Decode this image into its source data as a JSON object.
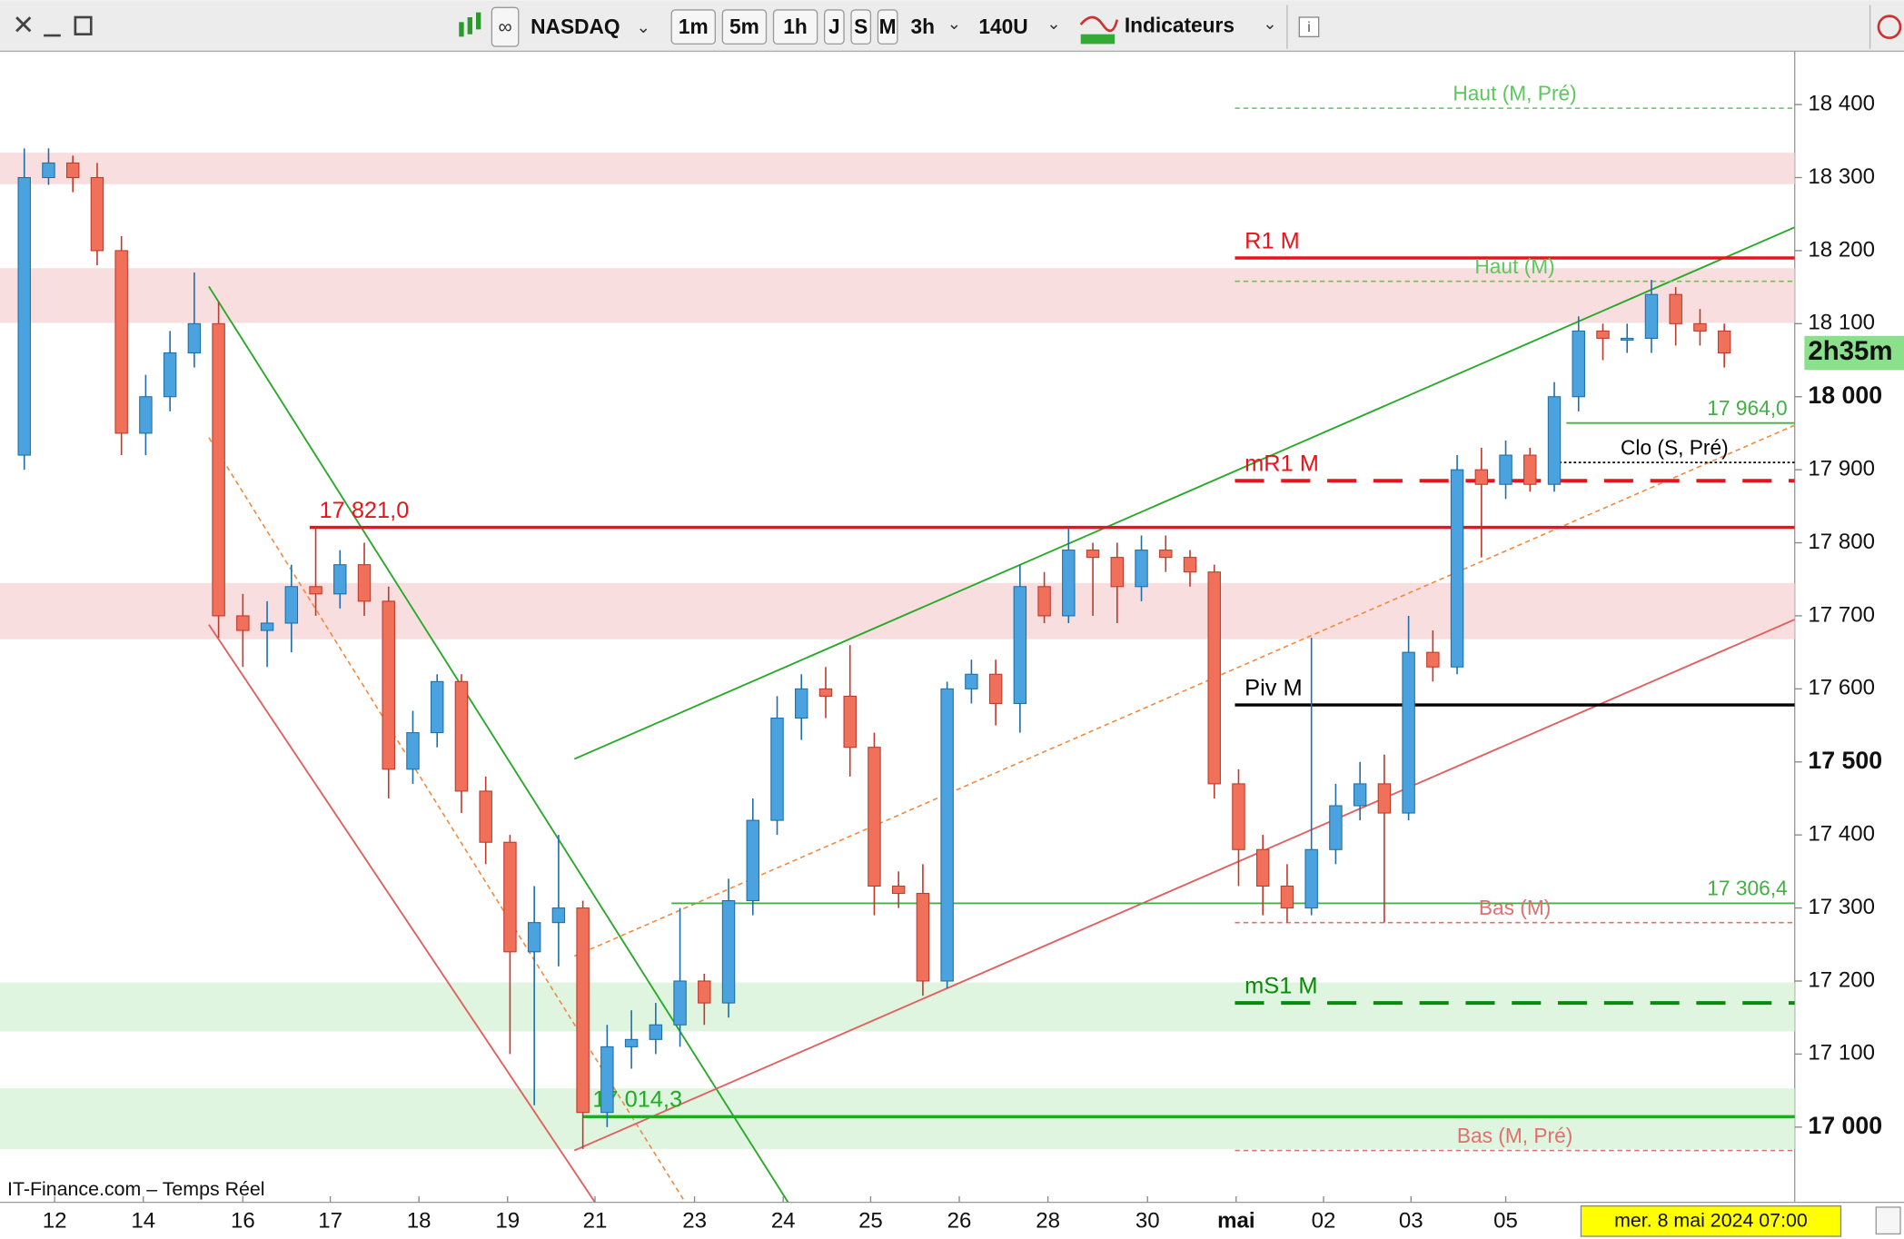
{
  "toolbar": {
    "symbol": "NASDAQ",
    "periods": [
      "1m",
      "5m",
      "1h",
      "J",
      "S",
      "M"
    ],
    "interval": "3h",
    "units": "140U",
    "indicators": "Indicateurs"
  },
  "chart_data": {
    "type": "candlestick",
    "source": "IT-Finance.com – Temps Réel",
    "cursor_date": "mer. 8 mai 2024 07:00",
    "countdown": "2h35m",
    "up_color": "#4aa3df",
    "down_color": "#f0705a",
    "xlim": [
      -1,
      72.9
    ],
    "ylim": [
      16897,
      18473
    ],
    "yticks": [
      {
        "value": 18400,
        "label": "18 400"
      },
      {
        "value": 18300,
        "label": "18 300"
      },
      {
        "value": 18200,
        "label": "18 200"
      },
      {
        "value": 18100,
        "label": "18 100"
      },
      {
        "value": 18000,
        "label": "18 000"
      },
      {
        "value": 17900,
        "label": "17 900"
      },
      {
        "value": 17800,
        "label": "17 800"
      },
      {
        "value": 17700,
        "label": "17 700"
      },
      {
        "value": 17600,
        "label": "17 600"
      },
      {
        "value": 17500,
        "label": "17 500"
      },
      {
        "value": 17400,
        "label": "17 400"
      },
      {
        "value": 17300,
        "label": "17 300"
      },
      {
        "value": 17200,
        "label": "17 200"
      },
      {
        "value": 17100,
        "label": "17 100"
      },
      {
        "value": 17000,
        "label": "17 000"
      }
    ],
    "xticks": [
      {
        "value": 1.25,
        "label": "12"
      },
      {
        "value": 4.9,
        "label": "14"
      },
      {
        "value": 9,
        "label": "16"
      },
      {
        "value": 12.6,
        "label": "17"
      },
      {
        "value": 16.25,
        "label": "18"
      },
      {
        "value": 19.9,
        "label": "19"
      },
      {
        "value": 23.5,
        "label": "21"
      },
      {
        "value": 27.6,
        "label": "23"
      },
      {
        "value": 31.25,
        "label": "24"
      },
      {
        "value": 34.85,
        "label": "25"
      },
      {
        "value": 38.5,
        "label": "26"
      },
      {
        "value": 42.15,
        "label": "28"
      },
      {
        "value": 46.25,
        "label": "30"
      },
      {
        "value": 49.9,
        "label": "mai"
      },
      {
        "value": 53.5,
        "label": "02"
      },
      {
        "value": 57.1,
        "label": "03"
      },
      {
        "value": 61,
        "label": "05"
      }
    ],
    "open": [
      17920,
      18300,
      18320,
      18300,
      18200,
      17950,
      18000,
      18060,
      18100,
      17700,
      17680,
      17690,
      17740,
      17730,
      17770,
      17720,
      17490,
      17540,
      17610,
      17460,
      17390,
      17240,
      17280,
      17300,
      17020,
      17110,
      17120,
      17140,
      17200,
      17170,
      17310,
      17420,
      17560,
      17600,
      17590,
      17520,
      17330,
      17320,
      17200,
      17600,
      17620,
      17580,
      17740,
      17700,
      17790,
      17780,
      17740,
      17790,
      17780,
      17760,
      17470,
      17380,
      17330,
      17300,
      17380,
      17440,
      17470,
      17430,
      17650,
      17630,
      17900,
      17880,
      17920,
      17880,
      18000,
      18090,
      18080,
      18080,
      18140,
      18100,
      18090
    ],
    "high": [
      18340,
      18340,
      18330,
      18320,
      18220,
      18030,
      18090,
      18170,
      18130,
      17730,
      17720,
      17770,
      17820,
      17790,
      17800,
      17740,
      17570,
      17620,
      17620,
      17480,
      17400,
      17330,
      17400,
      17310,
      17140,
      17160,
      17170,
      17300,
      17210,
      17340,
      17450,
      17590,
      17620,
      17630,
      17660,
      17540,
      17350,
      17360,
      17610,
      17640,
      17640,
      17770,
      17760,
      17820,
      17800,
      17800,
      17810,
      17810,
      17790,
      17770,
      17490,
      17400,
      17360,
      17670,
      17470,
      17500,
      17510,
      17700,
      17680,
      17920,
      17930,
      17940,
      17930,
      18020,
      18110,
      18100,
      18100,
      18160,
      18150,
      18120,
      18100
    ],
    "low": [
      17900,
      18290,
      18280,
      18180,
      17920,
      17920,
      17980,
      18040,
      17670,
      17630,
      17630,
      17650,
      17700,
      17710,
      17700,
      17450,
      17470,
      17520,
      17430,
      17360,
      17100,
      17030,
      17220,
      16970,
      17000,
      17080,
      17100,
      17110,
      17140,
      17150,
      17290,
      17400,
      17530,
      17560,
      17480,
      17290,
      17300,
      17180,
      17190,
      17580,
      17550,
      17540,
      17690,
      17690,
      17700,
      17690,
      17720,
      17760,
      17740,
      17450,
      17330,
      17290,
      17280,
      17290,
      17360,
      17420,
      17280,
      17420,
      17610,
      17620,
      17780,
      17860,
      17870,
      17870,
      17980,
      18050,
      18060,
      18060,
      18070,
      18070,
      18040
    ],
    "close": [
      18300,
      18320,
      18300,
      18200,
      17950,
      18000,
      18060,
      18100,
      17700,
      17680,
      17690,
      17740,
      17730,
      17770,
      17720,
      17490,
      17540,
      17610,
      17460,
      17390,
      17240,
      17280,
      17300,
      17020,
      17110,
      17120,
      17140,
      17200,
      17170,
      17310,
      17420,
      17560,
      17600,
      17590,
      17520,
      17330,
      17320,
      17200,
      17600,
      17620,
      17580,
      17740,
      17700,
      17790,
      17780,
      17740,
      17790,
      17780,
      17760,
      17470,
      17380,
      17330,
      17300,
      17380,
      17440,
      17470,
      17430,
      17650,
      17630,
      17900,
      17880,
      17920,
      17880,
      18000,
      18090,
      18080,
      18080,
      18140,
      18100,
      18090,
      18060
    ],
    "zones": [
      {
        "low": 18291,
        "high": 18334,
        "color": "#f8dede"
      },
      {
        "low": 18101,
        "high": 18176,
        "color": "#f8dede"
      },
      {
        "low": 17668,
        "high": 17745,
        "color": "#f8dede"
      },
      {
        "low": 17131,
        "high": 17198,
        "color": "#dff5df"
      },
      {
        "low": 16970,
        "high": 17053,
        "color": "#dff5df"
      }
    ],
    "trendlines": [
      {
        "color": "#2aa82a",
        "style": "solid",
        "points": [
          [
            7.6,
            18151
          ],
          [
            32.25,
            16855
          ]
        ]
      },
      {
        "color": "#e06060",
        "style": "solid",
        "points": [
          [
            7.6,
            17688
          ],
          [
            23.5,
            16897
          ]
        ]
      },
      {
        "color": "#f08a40",
        "style": "dashed",
        "points": [
          [
            7.6,
            17944
          ],
          [
            28,
            16855
          ]
        ]
      },
      {
        "color": "#2aa82a",
        "style": "solid",
        "points": [
          [
            22.65,
            17504
          ],
          [
            72.9,
            18232
          ]
        ]
      },
      {
        "color": "#f08a40",
        "style": "dashed",
        "points": [
          [
            22.65,
            17234
          ],
          [
            72.9,
            17961
          ]
        ]
      },
      {
        "color": "#e06060",
        "style": "solid",
        "points": [
          [
            22.65,
            16968
          ],
          [
            72.9,
            17695
          ]
        ]
      }
    ],
    "levels": [
      {
        "name": "Haut (M, Pré)",
        "value": 18395,
        "color": "#5cc85c",
        "style": "dashed",
        "start": 49.85,
        "align": "center"
      },
      {
        "name": "R1 M",
        "value": 18190,
        "color": "#e8141c",
        "style": "thick",
        "start": 49.85,
        "align": "left"
      },
      {
        "name": "Haut (M)",
        "value": 18158,
        "color": "#5cc85c",
        "style": "dashed",
        "start": 49.85,
        "align": "center"
      },
      {
        "value": 17964,
        "value_label": "17 964,0",
        "color": "#44b044",
        "style": "solid",
        "start": 63.5,
        "align": "right"
      },
      {
        "name": "Clo (S, Pré)",
        "value": 17910,
        "color": "#000000",
        "style": "dotted",
        "start": 63,
        "align": "center"
      },
      {
        "name": "mR1 M",
        "value": 17885,
        "color": "#e8141c",
        "style": "long-dash",
        "start": 49.85,
        "align": "left"
      },
      {
        "value": 17821,
        "value_label": "17 821,0",
        "color": "#e8141c",
        "style": "thick",
        "start": 11.75,
        "align": "left"
      },
      {
        "name": "Piv M",
        "value": 17578,
        "color": "#000000",
        "style": "thick",
        "start": 49.85,
        "align": "left"
      },
      {
        "value": 17306.4,
        "value_label": "17 306,4",
        "color": "#44b044",
        "style": "solid",
        "start": 26.65,
        "align": "right"
      },
      {
        "name": "Bas (M)",
        "value": 17280,
        "color": "#e07070",
        "style": "dashed",
        "start": 49.85,
        "align": "center"
      },
      {
        "name": "mS1 M",
        "value": 17170,
        "color": "#0a8a0a",
        "style": "long-dash",
        "start": 49.85,
        "align": "left"
      },
      {
        "value": 17014.3,
        "value_label": "17 014,3",
        "color": "#22aa22",
        "style": "thick",
        "start": 23,
        "align": "left"
      },
      {
        "name": "Bas (M, Pré)",
        "value": 16968,
        "color": "#e07070",
        "style": "dashed",
        "start": 49.85,
        "align": "center"
      }
    ]
  }
}
